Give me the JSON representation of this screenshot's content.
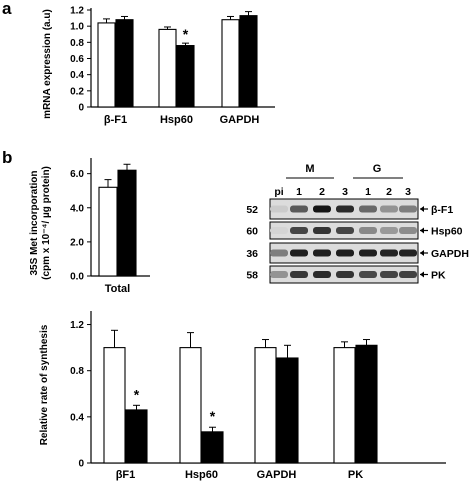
{
  "figure": {
    "panel_a_label": "a",
    "panel_b_label": "b"
  },
  "chart_data": [
    {
      "type": "bar",
      "panel": "a",
      "title": "",
      "ylabel": "mRNA expression (a.u)",
      "ylim": [
        0,
        1.2
      ],
      "yticks": [
        "0",
        "0.2",
        "0.4",
        "0.6",
        "0.8",
        "1.0",
        "1.2"
      ],
      "categories": [
        "β-F1",
        "Hsp60",
        "GAPDH"
      ],
      "series": [
        {
          "fill": "#ffffff",
          "values": [
            1.04,
            0.96,
            1.08
          ],
          "errors": [
            0.05,
            0.03,
            0.04
          ]
        },
        {
          "fill": "#000000",
          "values": [
            1.08,
            0.76,
            1.13
          ],
          "errors": [
            0.04,
            0.03,
            0.05
          ]
        }
      ],
      "annotations": [
        {
          "category": 1,
          "series": 1,
          "text": "*"
        }
      ]
    },
    {
      "type": "bar",
      "panel": "b-top",
      "title": "",
      "ylabel_line1": "35S Met incorporation",
      "ylabel_line2": "(cpm x 10⁻⁴/ µg protein)",
      "ylim": [
        0,
        6.8
      ],
      "yticks": [
        "0.0",
        "2.0",
        "4.0",
        "6.0"
      ],
      "categories": [
        "Total"
      ],
      "series": [
        {
          "fill": "#ffffff",
          "values": [
            5.2
          ],
          "errors": [
            0.45
          ]
        },
        {
          "fill": "#000000",
          "values": [
            6.2
          ],
          "errors": [
            0.35
          ]
        }
      ]
    },
    {
      "type": "bar",
      "panel": "b-bottom",
      "title": "",
      "ylabel": "Relative rate of synthesis",
      "ylim": [
        0,
        1.3
      ],
      "yticks": [
        "0",
        "0.4",
        "0.8",
        "1.2"
      ],
      "categories": [
        "βF1",
        "Hsp60",
        "GAPDH",
        "PK"
      ],
      "series": [
        {
          "fill": "#ffffff",
          "values": [
            1.0,
            1.0,
            1.0,
            1.0
          ],
          "errors": [
            0.15,
            0.13,
            0.07,
            0.05
          ]
        },
        {
          "fill": "#000000",
          "values": [
            0.46,
            0.27,
            0.91,
            1.02
          ],
          "errors": [
            0.04,
            0.04,
            0.11,
            0.05
          ]
        }
      ],
      "annotations": [
        {
          "category": 0,
          "series": 1,
          "text": "*"
        },
        {
          "category": 1,
          "series": 1,
          "text": "*"
        }
      ]
    }
  ],
  "blot": {
    "group_labels": [
      "M",
      "G"
    ],
    "lane_labels": [
      "pi",
      "1",
      "2",
      "3",
      "1",
      "2",
      "3"
    ],
    "mw_labels": [
      "52",
      "60",
      "36",
      "58"
    ],
    "band_labels": [
      "β-F1",
      "Hsp60",
      "GAPDH",
      "PK"
    ],
    "band_intensities": [
      [
        0.08,
        0.62,
        0.95,
        0.85,
        0.55,
        0.35,
        0.45
      ],
      [
        0.04,
        0.72,
        0.8,
        0.72,
        0.4,
        0.32,
        0.38
      ],
      [
        0.45,
        0.9,
        0.9,
        0.9,
        0.9,
        0.88,
        0.88
      ],
      [
        0.35,
        0.78,
        0.85,
        0.8,
        0.7,
        0.72,
        0.74
      ]
    ]
  }
}
